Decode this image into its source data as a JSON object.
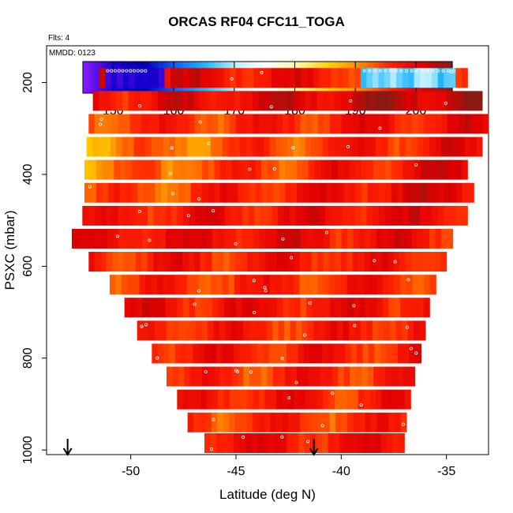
{
  "chart_data": {
    "type": "heatmap",
    "title": "ORCAS RF04 CFC11_TOGA",
    "flights_note": "Flts: 4",
    "date_note": "MMDD: 0123",
    "xlabel": "Latitude (deg N)",
    "ylabel": "PSXC (mbar)",
    "xlim": [
      -54.0,
      -33.0
    ],
    "ylim": [
      1010,
      120
    ],
    "x_ticks": [
      -50,
      -45,
      -40,
      -35
    ],
    "y_ticks": [
      200,
      400,
      600,
      800,
      1000
    ],
    "colorbar": {
      "range": [
        145,
        206
      ],
      "ticks": [
        150,
        160,
        170,
        180,
        190,
        200
      ],
      "separators": [
        150,
        160,
        170,
        180,
        190,
        200
      ],
      "colors": [
        "#8a1bff",
        "#1a00d0",
        "#0000a8",
        "#1060ff",
        "#22b8ff",
        "#bff0ff",
        "#ffffff",
        "#fff8a0",
        "#ffd000",
        "#ff8800",
        "#ff2000",
        "#e00000",
        "#8a1a14"
      ]
    },
    "arrows_lat": [
      -53.0,
      -41.3
    ],
    "rows": [
      {
        "p": 190,
        "lat_min": -51.5,
        "lat_max": -34.0,
        "left_value": 200,
        "right_value": 196,
        "low_start": -51.2,
        "low_end": -48.5,
        "low_value": 150,
        "high_start": -39.0,
        "high_end": -34.5,
        "high_value": 168
      },
      {
        "p": 240,
        "lat_min": -51.8,
        "lat_max": -33.3,
        "left_value": 198,
        "right_value": 204
      },
      {
        "p": 290,
        "lat_min": -52.0,
        "lat_max": -33.0,
        "left_value": 194,
        "right_value": 199
      },
      {
        "p": 340,
        "lat_min": -52.1,
        "lat_max": -33.3,
        "left_value": 190,
        "right_value": 199
      },
      {
        "p": 390,
        "lat_min": -52.2,
        "lat_max": -34.0,
        "left_value": 191,
        "right_value": 200
      },
      {
        "p": 440,
        "lat_min": -52.2,
        "lat_max": -33.7,
        "left_value": 193,
        "right_value": 201
      },
      {
        "p": 490,
        "lat_min": -52.3,
        "lat_max": -34.0,
        "left_value": 197,
        "right_value": 199
      },
      {
        "p": 540,
        "lat_min": -52.8,
        "lat_max": -34.7,
        "left_value": 199,
        "right_value": 198
      },
      {
        "p": 590,
        "lat_min": -52.0,
        "lat_max": -35.0,
        "left_value": 197,
        "right_value": 197
      },
      {
        "p": 640,
        "lat_min": -51.0,
        "lat_max": -35.5,
        "left_value": 195,
        "right_value": 197
      },
      {
        "p": 690,
        "lat_min": -50.3,
        "lat_max": -35.8,
        "left_value": 198,
        "right_value": 198
      },
      {
        "p": 740,
        "lat_min": -49.7,
        "lat_max": -36.0,
        "left_value": 196,
        "right_value": 197
      },
      {
        "p": 790,
        "lat_min": -49.0,
        "lat_max": -36.2,
        "left_value": 197,
        "right_value": 197
      },
      {
        "p": 840,
        "lat_min": -48.3,
        "lat_max": -36.5,
        "left_value": 195,
        "right_value": 197
      },
      {
        "p": 890,
        "lat_min": -47.8,
        "lat_max": -36.7,
        "left_value": 197,
        "right_value": 197
      },
      {
        "p": 940,
        "lat_min": -47.3,
        "lat_max": -36.9,
        "left_value": 195,
        "right_value": 196
      },
      {
        "p": 985,
        "lat_min": -46.5,
        "lat_max": -37.0,
        "left_value": 198,
        "right_value": 198
      }
    ]
  }
}
